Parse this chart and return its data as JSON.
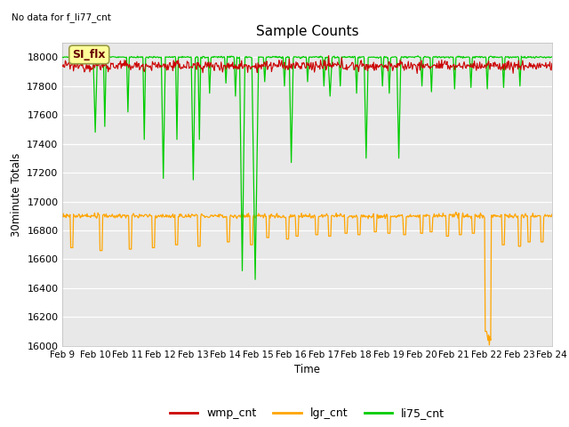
{
  "title": "Sample Counts",
  "top_left_text": "No data for f_li77_cnt",
  "ylabel": "30minute Totals",
  "xlabel": "Time",
  "annotation": "SI_flx",
  "ylim": [
    16000,
    18100
  ],
  "yticks": [
    16000,
    16200,
    16400,
    16600,
    16800,
    17000,
    17200,
    17400,
    17600,
    17800,
    18000
  ],
  "xlim_days": [
    0,
    15
  ],
  "x_tick_labels": [
    "Feb 9",
    "Feb 10",
    "Feb 11",
    "Feb 12",
    "Feb 13",
    "Feb 14",
    "Feb 15",
    "Feb 16",
    "Feb 17",
    "Feb 18",
    "Feb 19",
    "Feb 20",
    "Feb 21",
    "Feb 22",
    "Feb 23",
    "Feb 24"
  ],
  "x_tick_positions": [
    0,
    1,
    2,
    3,
    4,
    5,
    6,
    7,
    8,
    9,
    10,
    11,
    12,
    13,
    14,
    15
  ],
  "wmp_base": 17940,
  "wmp_noise": 18,
  "lgr_base": 16900,
  "lgr_noise": 8,
  "li75_base": 18000,
  "li75_noise": 3,
  "background_color": "#e8e8e8",
  "wmp_color": "#cc0000",
  "lgr_color": "#ffa500",
  "li75_color": "#00cc00",
  "legend_items": [
    "wmp_cnt",
    "lgr_cnt",
    "li75_cnt"
  ],
  "legend_colors": [
    "#cc0000",
    "#ffa500",
    "#00cc00"
  ],
  "figsize": [
    6.4,
    4.8
  ],
  "dpi": 100
}
